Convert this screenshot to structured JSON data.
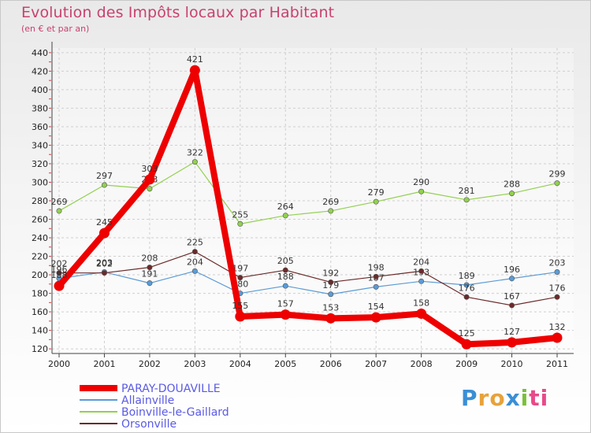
{
  "header": {
    "title": "Evolution des Impôts locaux par Habitant",
    "subtitle": "(en € et par an)"
  },
  "logo": {
    "letters": [
      "P",
      "r",
      "o",
      "x",
      "i",
      "t",
      "i"
    ],
    "colors": [
      "#3a8fd6",
      "#e8a23a",
      "#e8a23a",
      "#3a8fd6",
      "#7cbf3a",
      "#e84a8a",
      "#e84a8a"
    ]
  },
  "chart_data": {
    "type": "line",
    "title": "Evolution des Impôts locaux par Habitant",
    "subtitle": "(en € et par an)",
    "xlabel": "",
    "ylabel": "",
    "categories": [
      "2000",
      "2001",
      "2002",
      "2003",
      "2004",
      "2005",
      "2006",
      "2007",
      "2008",
      "2009",
      "2010",
      "2011"
    ],
    "ylim": [
      115,
      445
    ],
    "yticks": [
      120,
      140,
      160,
      180,
      200,
      220,
      240,
      260,
      280,
      300,
      320,
      340,
      360,
      380,
      400,
      420,
      440
    ],
    "grid": true,
    "legend_position": "bottom-left",
    "series": [
      {
        "name": "Allainville",
        "color": "#5b9bd5",
        "values": [
          196,
          203,
          191,
          204,
          180,
          188,
          179,
          187,
          193,
          189,
          196,
          203
        ],
        "labels": [
          "196",
          "203",
          "191",
          "204",
          "180",
          "188",
          "179",
          "187",
          "193",
          "189",
          "196",
          "203"
        ],
        "thick": false
      },
      {
        "name": "Boinville-le-Gaillard",
        "color": "#92d050",
        "values": [
          269,
          297,
          293,
          322,
          255,
          264,
          269,
          279,
          290,
          281,
          288,
          299
        ],
        "labels": [
          "269",
          "297",
          "293",
          "322",
          "255",
          "264",
          "269",
          "279",
          "290",
          "281",
          "288",
          "299"
        ],
        "thick": false
      },
      {
        "name": "Orsonville",
        "color": "#6b2a2a",
        "values": [
          202,
          202,
          208,
          225,
          197,
          205,
          192,
          198,
          204,
          176,
          167,
          176
        ],
        "labels": [
          "202",
          "202",
          "208",
          "225",
          "197",
          "205",
          "192",
          "198",
          "204",
          "176",
          "167",
          "176"
        ],
        "thick": false
      },
      {
        "name": "PARAY-DOUAVILLE",
        "color": "#ee0000",
        "values": [
          188,
          245,
          303,
          421,
          155,
          157,
          153,
          154,
          158,
          125,
          127,
          132
        ],
        "labels": [
          "188",
          "245",
          "303",
          "421",
          "155",
          "157",
          "153",
          "154",
          "158",
          "125",
          "127",
          "132"
        ],
        "thick": true
      }
    ],
    "legend": [
      "PARAY-DOUAVILLE",
      "Allainville",
      "Boinville-le-Gaillard",
      "Orsonville"
    ]
  }
}
